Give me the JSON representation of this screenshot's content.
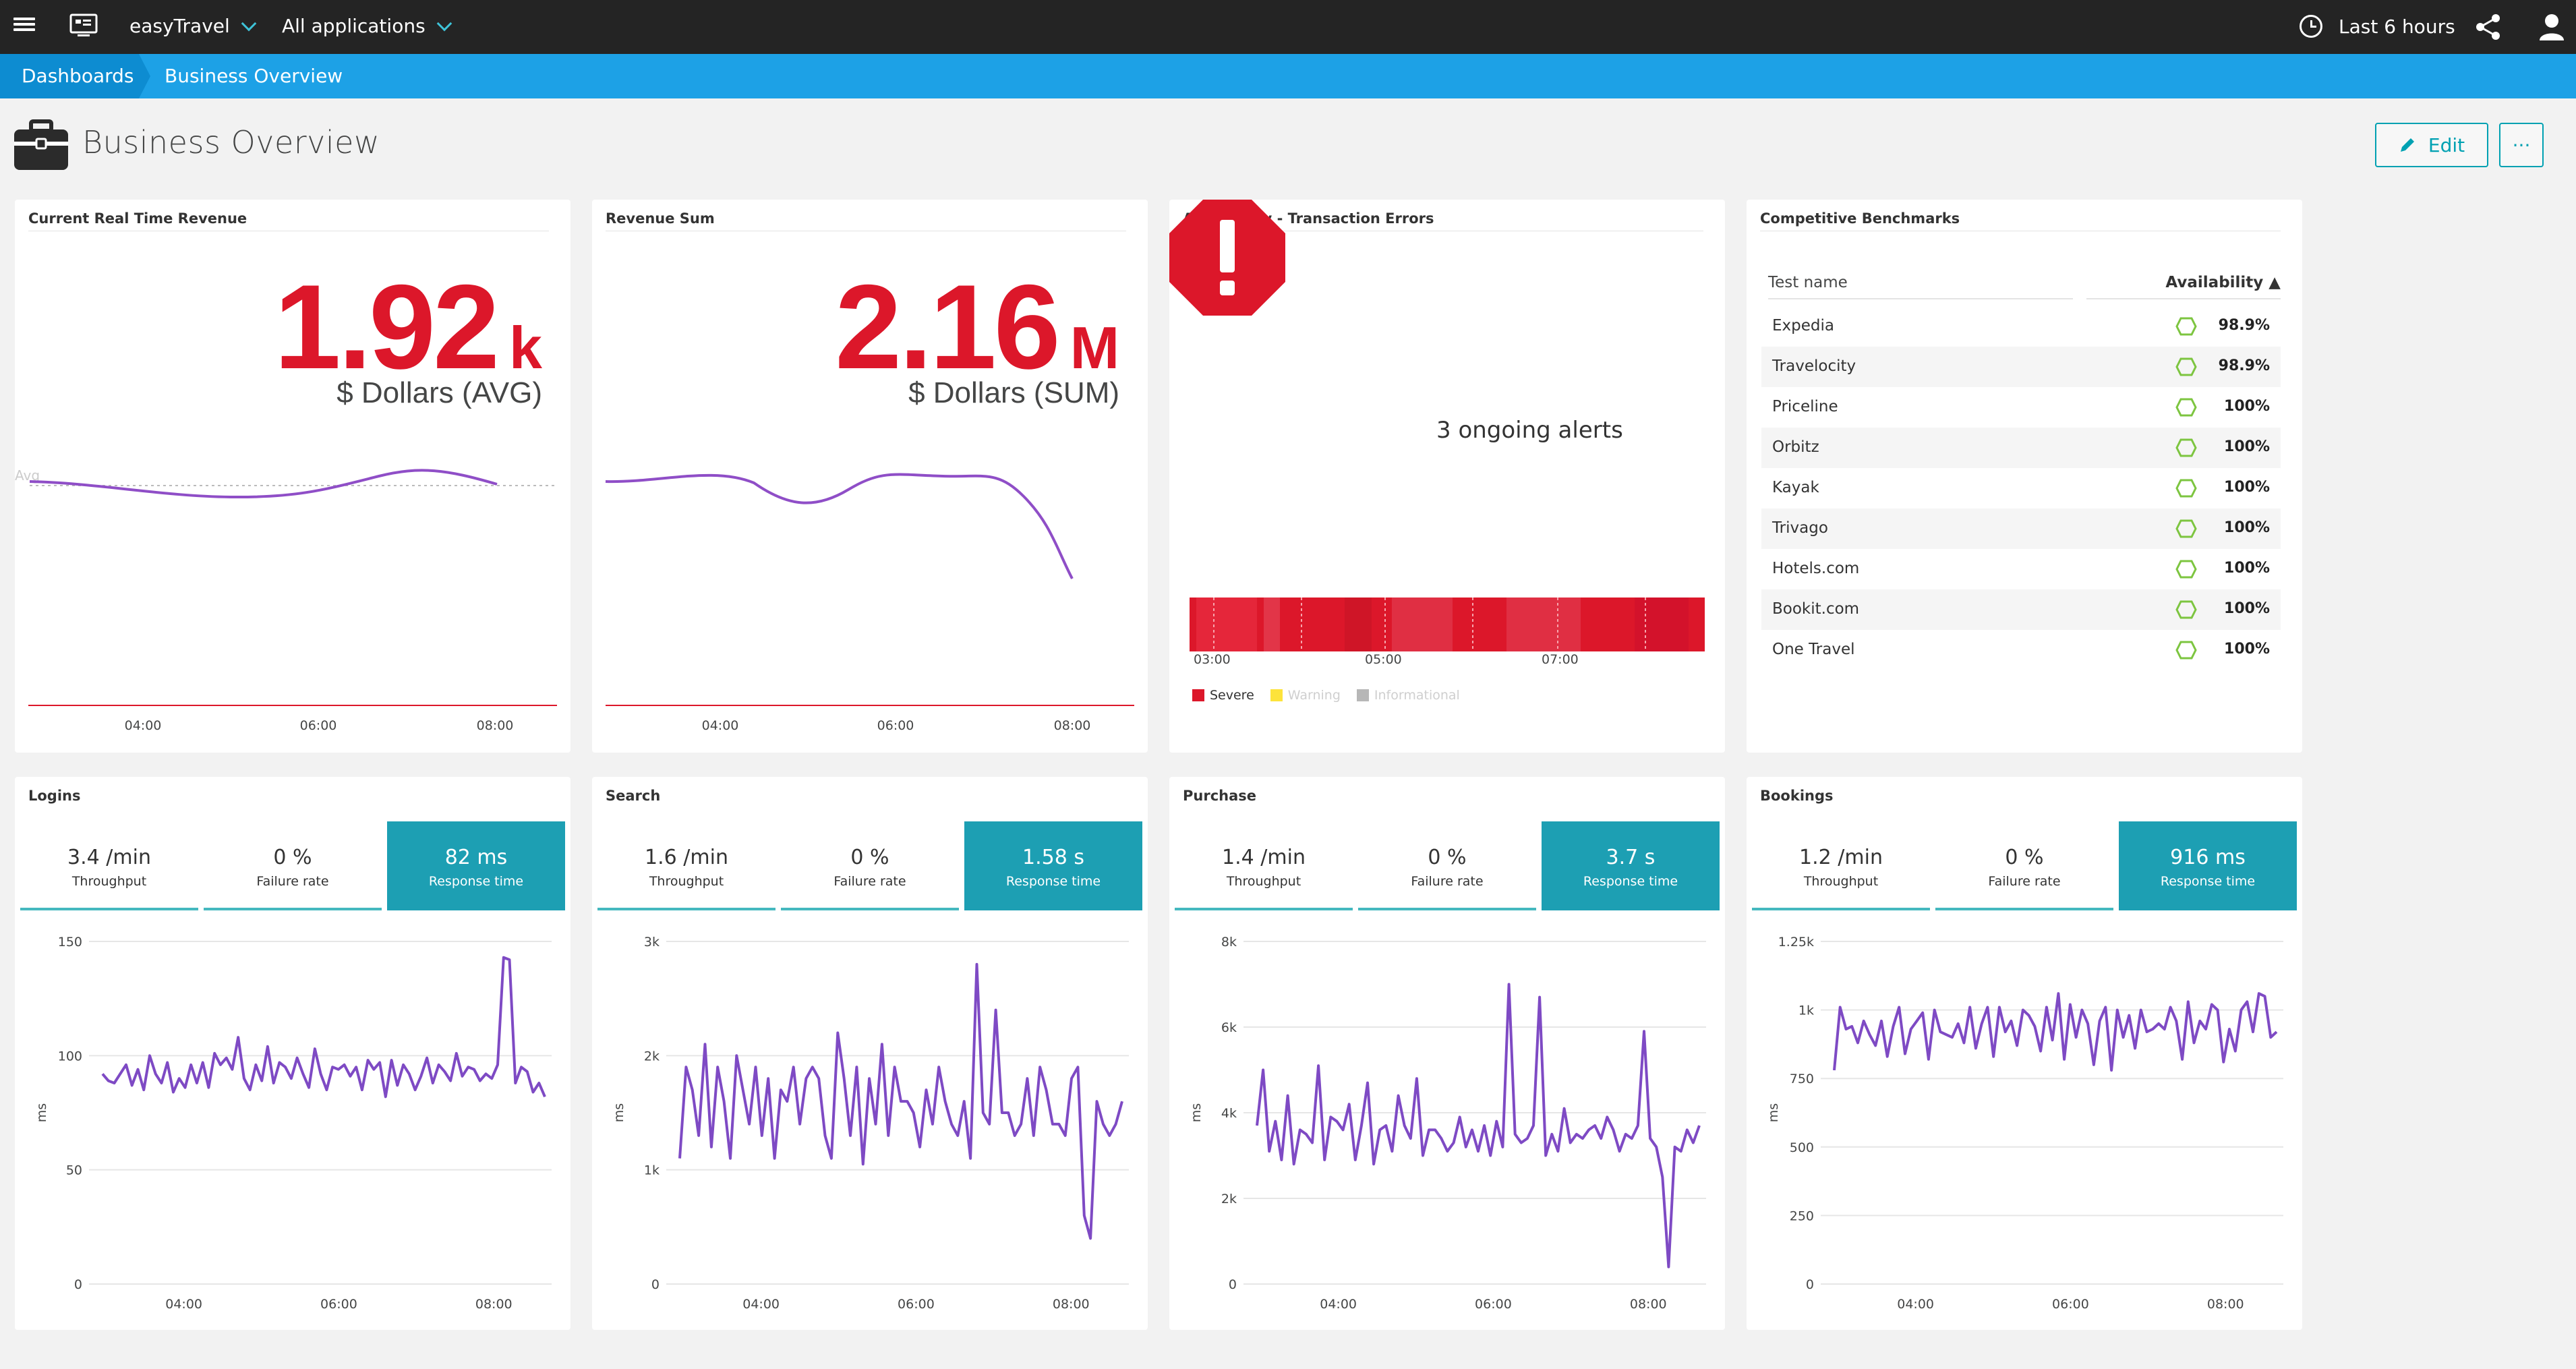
{
  "topbar": {
    "environment": "easyTravel",
    "application": "All applications",
    "timeframe": "Last 6 hours"
  },
  "breadcrumb": {
    "root": "Dashboards",
    "current": "Business Overview"
  },
  "page": {
    "title": "Business Overview",
    "edit_label": "Edit",
    "more_label": "···"
  },
  "tiles": {
    "realtime_revenue": {
      "title": "Current Real Time Revenue",
      "value": "1.92",
      "unit": "k",
      "subtitle": "$ Dollars (AVG)",
      "avg_label": "Avg",
      "x_labels": [
        "04:00",
        "06:00",
        "08:00"
      ]
    },
    "revenue_sum": {
      "title": "Revenue Sum",
      "value": "2.16",
      "unit": "M",
      "subtitle": "$ Dollars (SUM)",
      "x_labels": [
        "04:00",
        "06:00",
        "08:00"
      ]
    },
    "availability": {
      "title": "Availability - Transaction Errors",
      "alert_text": "3 ongoing alerts",
      "x_labels": [
        "03:00",
        "05:00",
        "07:00"
      ],
      "legend": [
        {
          "label": "Severe",
          "color": "#dc172a"
        },
        {
          "label": "Warning",
          "color": "#fde33b"
        },
        {
          "label": "Informational",
          "color": "#b7b7b7"
        }
      ]
    },
    "benchmarks": {
      "title": "Competitive Benchmarks",
      "col_name": "Test name",
      "col_availability": "Availability ▲",
      "rows": [
        {
          "name": "Expedia",
          "availability": "98.9%"
        },
        {
          "name": "Travelocity",
          "availability": "98.9%"
        },
        {
          "name": "Priceline",
          "availability": "100%"
        },
        {
          "name": "Orbitz",
          "availability": "100%"
        },
        {
          "name": "Kayak",
          "availability": "100%"
        },
        {
          "name": "Trivago",
          "availability": "100%"
        },
        {
          "name": "Hotels.com",
          "availability": "100%"
        },
        {
          "name": "Bookit.com",
          "availability": "100%"
        },
        {
          "name": "One Travel",
          "availability": "100%"
        }
      ]
    },
    "logins": {
      "title": "Logins",
      "throughput": "3.4 /min",
      "throughput_label": "Throughput",
      "failure": "0 %",
      "failure_label": "Failure rate",
      "response": "82 ms",
      "response_label": "Response time"
    },
    "search": {
      "title": "Search",
      "throughput": "1.6 /min",
      "throughput_label": "Throughput",
      "failure": "0 %",
      "failure_label": "Failure rate",
      "response": "1.58 s",
      "response_label": "Response time"
    },
    "purchase": {
      "title": "Purchase",
      "throughput": "1.4 /min",
      "throughput_label": "Throughput",
      "failure": "0 %",
      "failure_label": "Failure rate",
      "response": "3.7 s",
      "response_label": "Response time"
    },
    "bookings": {
      "title": "Bookings",
      "throughput": "1.2 /min",
      "throughput_label": "Throughput",
      "failure": "0 %",
      "failure_label": "Failure rate",
      "response": "916 ms",
      "response_label": "Response time"
    }
  },
  "chart_data": [
    {
      "type": "line",
      "title": "Logins",
      "ylabel": "ms",
      "yticks": [
        "0",
        "50",
        "100",
        "150"
      ],
      "ylim": [
        0,
        150
      ],
      "xticks": [
        "04:00",
        "06:00",
        "08:00"
      ],
      "values": [
        92,
        89,
        88,
        92,
        96,
        87,
        94,
        85,
        100,
        92,
        88,
        97,
        84,
        90,
        86,
        96,
        88,
        97,
        86,
        101,
        96,
        99,
        94,
        108,
        90,
        85,
        96,
        89,
        104,
        88,
        97,
        95,
        90,
        99,
        92,
        86,
        103,
        92,
        85,
        95,
        94,
        96,
        91,
        95,
        85,
        98,
        94,
        97,
        82,
        98,
        87,
        96,
        92,
        85,
        91,
        99,
        88,
        96,
        93,
        89,
        101,
        91,
        95,
        94,
        89,
        92,
        90,
        96,
        143,
        142,
        88,
        95,
        93,
        84,
        88,
        82
      ],
      "line_color": "#7e4ac4"
    },
    {
      "type": "line",
      "title": "Search",
      "ylabel": "ms",
      "yticks": [
        "0",
        "1k",
        "2k",
        "3k"
      ],
      "ylim": [
        0,
        3000
      ],
      "xticks": [
        "04:00",
        "06:00",
        "08:00"
      ],
      "values": [
        1100,
        1900,
        1700,
        1300,
        2100,
        1200,
        1900,
        1600,
        1100,
        2000,
        1700,
        1400,
        1900,
        1300,
        1800,
        1100,
        1700,
        1600,
        1900,
        1400,
        1800,
        1900,
        1800,
        1300,
        1100,
        2200,
        1800,
        1300,
        1900,
        1050,
        1800,
        1400,
        2100,
        1300,
        1900,
        1600,
        1600,
        1500,
        1200,
        1700,
        1400,
        1900,
        1600,
        1400,
        1300,
        1600,
        1100,
        2800,
        1500,
        1400,
        2400,
        1500,
        1500,
        1300,
        1400,
        1800,
        1300,
        1900,
        1700,
        1400,
        1400,
        1300,
        1800,
        1900,
        600,
        400,
        1600,
        1400,
        1300,
        1400,
        1600
      ],
      "line_color": "#7e4ac4"
    },
    {
      "type": "line",
      "title": "Purchase",
      "ylabel": "ms",
      "yticks": [
        "0",
        "2k",
        "4k",
        "6k",
        "8k"
      ],
      "ylim": [
        0,
        8000
      ],
      "xticks": [
        "04:00",
        "06:00",
        "08:00"
      ],
      "values": [
        3700,
        5000,
        3100,
        3800,
        2900,
        4400,
        2800,
        3600,
        3500,
        3300,
        5100,
        2900,
        3900,
        3800,
        3600,
        4200,
        2900,
        3700,
        4700,
        2800,
        3600,
        3700,
        3100,
        4400,
        3700,
        3400,
        4800,
        3000,
        3600,
        3600,
        3400,
        3100,
        3300,
        3900,
        3200,
        3600,
        3100,
        3700,
        3000,
        3800,
        3200,
        7000,
        3500,
        3300,
        3400,
        3700,
        6700,
        3000,
        3500,
        3100,
        4100,
        3300,
        3500,
        3400,
        3600,
        3700,
        3400,
        3900,
        3600,
        3100,
        3500,
        3400,
        3700,
        5900,
        3400,
        3200,
        2500,
        400,
        3200,
        3100,
        3600,
        3300,
        3700
      ],
      "line_color": "#7e4ac4"
    },
    {
      "type": "line",
      "title": "Bookings",
      "ylabel": "ms",
      "yticks": [
        "0",
        "250",
        "500",
        "750",
        "1k",
        "1.25k"
      ],
      "ylim": [
        0,
        1250
      ],
      "xticks": [
        "04:00",
        "06:00",
        "08:00"
      ],
      "values": [
        780,
        1010,
        930,
        940,
        880,
        960,
        910,
        870,
        960,
        830,
        940,
        1010,
        840,
        930,
        960,
        990,
        820,
        1000,
        920,
        910,
        900,
        950,
        880,
        1010,
        860,
        950,
        1010,
        830,
        1010,
        920,
        960,
        870,
        1000,
        980,
        940,
        850,
        1010,
        890,
        1060,
        820,
        1020,
        900,
        1000,
        950,
        800,
        960,
        1010,
        780,
        1000,
        900,
        980,
        860,
        1000,
        920,
        930,
        950,
        930,
        1010,
        960,
        820,
        1030,
        880,
        960,
        930,
        1020,
        1000,
        810,
        930,
        850,
        1000,
        1030,
        920,
        1060,
        1050,
        900,
        920
      ],
      "line_color": "#7e4ac4"
    }
  ]
}
